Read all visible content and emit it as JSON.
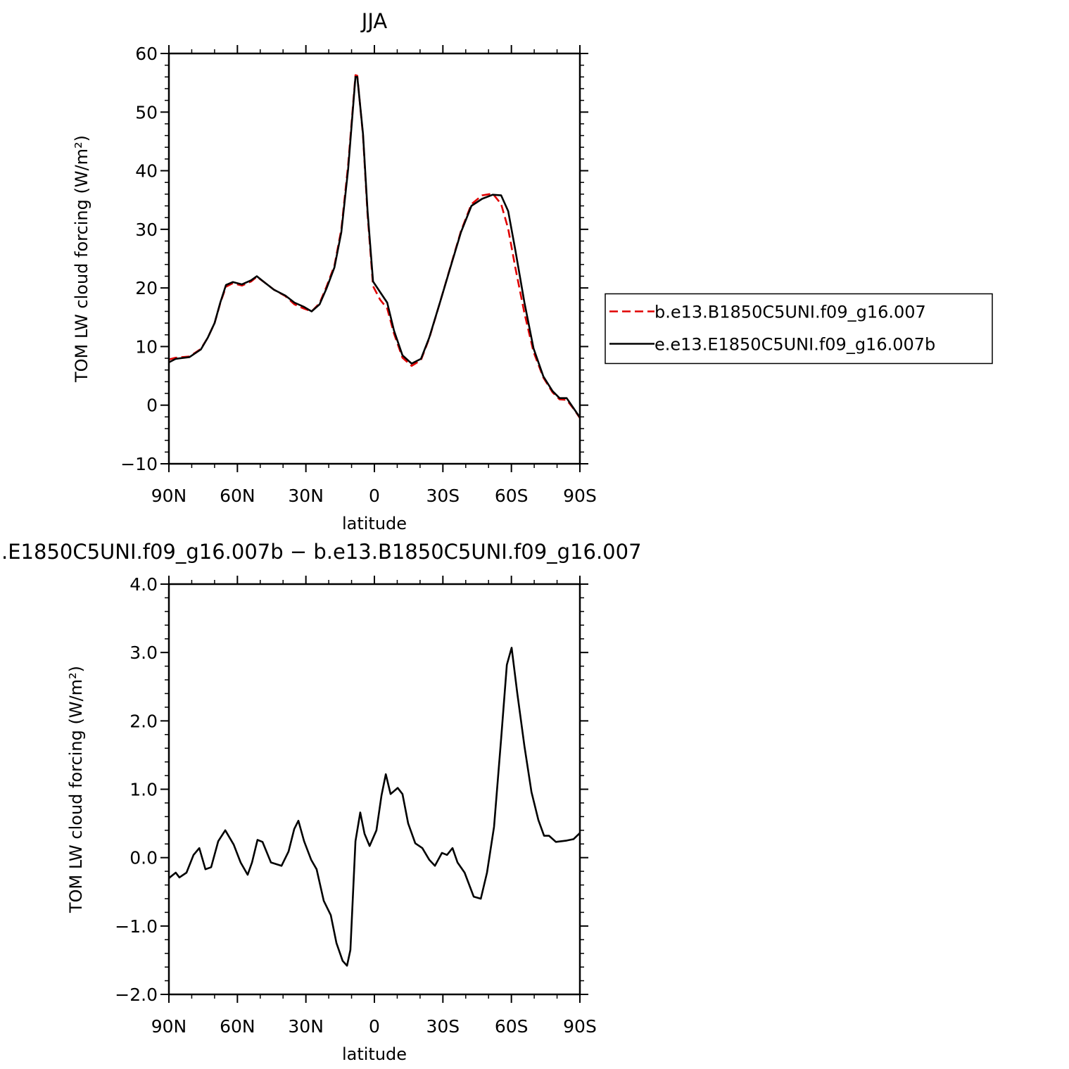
{
  "chart_data": [
    {
      "type": "line",
      "title": "JJA",
      "xlabel": "latitude",
      "ylabel": "TOM LW cloud forcing (W/m²)",
      "x": [
        90,
        87,
        81,
        76,
        73,
        70,
        67.5,
        65,
        62,
        58,
        54,
        51.5,
        48,
        44,
        39,
        35,
        31,
        27.5,
        24,
        21,
        17.5,
        14.5,
        11.5,
        8.3,
        7.5,
        5,
        3,
        0.6,
        -2.5,
        -5.6,
        -8.6,
        -12.3,
        -16.3,
        -20.4,
        -24,
        -28.7,
        -33.3,
        -37.9,
        -42.5,
        -47.2,
        -51.8,
        -55.5,
        -58.6,
        -61.7,
        -65.7,
        -69.7,
        -74,
        -78,
        -81.1,
        -84.2,
        -87.2,
        -90
      ],
      "series": [
        {
          "name": "b.e13.B1850C5UNI.f09_g16.007",
          "color": "#e00000",
          "dash": true,
          "values": [
            7.8,
            8.1,
            8.3,
            9.6,
            11.5,
            14,
            17.4,
            20.2,
            20.8,
            20.4,
            21.1,
            21.9,
            20.9,
            19.7,
            18.6,
            17.2,
            16.5,
            16,
            17.4,
            20.2,
            23.8,
            30,
            41,
            56.3,
            56.2,
            46,
            32.5,
            20.3,
            18,
            16.5,
            12.2,
            8.1,
            6.7,
            7.7,
            11.4,
            17.5,
            23.6,
            29.7,
            34.3,
            35.8,
            36.1,
            34.3,
            30.1,
            23.5,
            15.7,
            9.1,
            4.7,
            2.2,
            1,
            0.9,
            -0.6,
            -2.2
          ]
        },
        {
          "name": "e.e13.E1850C5UNI.f09_g16.007b",
          "color": "#000000",
          "dash": false,
          "values": [
            7.3,
            7.9,
            8.2,
            9.5,
            11.5,
            14,
            17.5,
            20.5,
            21,
            20.6,
            21.3,
            22,
            20.9,
            19.7,
            18.7,
            17.5,
            16.8,
            16,
            17.2,
            19.9,
            23.5,
            29.5,
            40.3,
            56,
            56,
            46.3,
            33.1,
            21.1,
            19.3,
            17.5,
            12.7,
            8.5,
            7.1,
            7.9,
            11.5,
            17.5,
            23.5,
            29.5,
            34,
            35.2,
            35.9,
            35.8,
            33.1,
            26.5,
            17.5,
            9.7,
            4.9,
            2.4,
            1.2,
            1.2,
            -0.5,
            -2.1
          ]
        }
      ],
      "xlim": [
        90,
        -90
      ],
      "xticks": [
        {
          "value": 90,
          "label": "90N"
        },
        {
          "value": 60,
          "label": "60N"
        },
        {
          "value": 30,
          "label": "30N"
        },
        0,
        {
          "value": -30,
          "label": "30S"
        },
        {
          "value": -60,
          "label": "60S"
        },
        {
          "value": -90,
          "label": "90S"
        }
      ],
      "ylim": [
        -10,
        60
      ],
      "yticks": [
        {
          "value": -10,
          "label": "−10"
        },
        0,
        10,
        20,
        30,
        40,
        50,
        60
      ],
      "legend": "right"
    },
    {
      "type": "line",
      "title": ".E1850C5UNI.f09_g16.007b − b.e13.B1850C5UNI.f09_g16.007",
      "xlabel": "latitude",
      "ylabel": "TOM LW cloud forcing (W/m²)",
      "x": [
        90,
        87,
        85.4,
        82.3,
        79.2,
        76.7,
        74,
        71.5,
        68.4,
        65.3,
        61.6,
        58.6,
        55.5,
        53.6,
        51.2,
        49,
        45.3,
        40.7,
        37.6,
        35.1,
        33.3,
        30.8,
        27.7,
        25.3,
        22.2,
        19.1,
        16.6,
        13.9,
        12,
        10.5,
        8.3,
        6.2,
        4.3,
        2.1,
        -0.9,
        -3.1,
        -5,
        -7.1,
        -10.2,
        -12.3,
        -14.8,
        -17.9,
        -21,
        -24,
        -26.5,
        -29.6,
        -31.8,
        -34.2,
        -36.4,
        -39.5,
        -43.5,
        -46.6,
        -49.3,
        -52.4,
        -55.5,
        -58,
        -60.1,
        -62.6,
        -65.7,
        -68.8,
        -71.8,
        -74.3,
        -76.5,
        -79.5,
        -84.2,
        -87.2,
        -90
      ],
      "values": [
        -0.3,
        -0.22,
        -0.29,
        -0.22,
        0.04,
        0.14,
        -0.17,
        -0.14,
        0.24,
        0.4,
        0.19,
        -0.07,
        -0.25,
        -0.07,
        0.26,
        0.23,
        -0.07,
        -0.12,
        0.09,
        0.42,
        0.54,
        0.24,
        -0.03,
        -0.17,
        -0.63,
        -0.84,
        -1.25,
        -1.51,
        -1.58,
        -1.35,
        0.24,
        0.66,
        0.35,
        0.17,
        0.4,
        0.91,
        1.22,
        0.93,
        1.02,
        0.93,
        0.5,
        0.21,
        0.14,
        -0.03,
        -0.12,
        0.07,
        0.04,
        0.14,
        -0.07,
        -0.22,
        -0.57,
        -0.6,
        -0.22,
        0.45,
        1.74,
        2.82,
        3.07,
        2.4,
        1.63,
        0.96,
        0.55,
        0.32,
        0.32,
        0.23,
        0.25,
        0.27,
        0.36
      ],
      "color": "#000000",
      "xlim": [
        90,
        -90
      ],
      "xticks": [
        {
          "value": 90,
          "label": "90N"
        },
        {
          "value": 60,
          "label": "60N"
        },
        {
          "value": 30,
          "label": "30N"
        },
        0,
        {
          "value": -30,
          "label": "30S"
        },
        {
          "value": -60,
          "label": "60S"
        },
        {
          "value": -90,
          "label": "90S"
        }
      ],
      "ylim": [
        -2,
        4
      ],
      "yticks": [
        {
          "value": -2,
          "label": "−2.0"
        },
        {
          "value": -1,
          "label": "−1.0"
        },
        {
          "value": 0,
          "label": "0.0"
        },
        {
          "value": 1,
          "label": "1.0"
        },
        {
          "value": 2,
          "label": "2.0"
        },
        {
          "value": 3,
          "label": "3.0"
        },
        {
          "value": 4,
          "label": "4.0"
        }
      ]
    }
  ]
}
